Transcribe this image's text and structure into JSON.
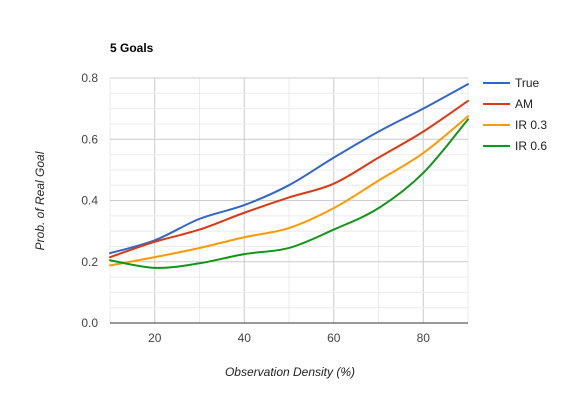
{
  "chart_data": {
    "type": "line",
    "title": "5 Goals",
    "xlabel": "Observation Density (%)",
    "ylabel": "Prob. of Real Goal",
    "xlim": [
      10,
      90
    ],
    "ylim": [
      0,
      0.8
    ],
    "x_ticks": [
      20,
      40,
      60,
      80
    ],
    "y_ticks": [
      0.0,
      0.2,
      0.4,
      0.6,
      0.8
    ],
    "y_tick_labels": [
      "0.0",
      "0.2",
      "0.4",
      "0.6",
      "0.8"
    ],
    "grid": true,
    "legend_position": "right",
    "x": [
      10,
      20,
      30,
      40,
      50,
      60,
      70,
      80,
      90
    ],
    "series": [
      {
        "name": "True",
        "color": "#3366cc",
        "values": [
          0.228,
          0.27,
          0.34,
          0.385,
          0.45,
          0.54,
          0.625,
          0.7,
          0.78
        ]
      },
      {
        "name": "AM",
        "color": "#dc3912",
        "values": [
          0.215,
          0.265,
          0.305,
          0.36,
          0.41,
          0.455,
          0.54,
          0.625,
          0.725
        ]
      },
      {
        "name": "IR 0.3",
        "color": "#ff9900",
        "values": [
          0.188,
          0.215,
          0.245,
          0.28,
          0.31,
          0.375,
          0.465,
          0.555,
          0.675
        ]
      },
      {
        "name": "IR 0.6",
        "color": "#109618",
        "values": [
          0.205,
          0.18,
          0.195,
          0.225,
          0.245,
          0.305,
          0.375,
          0.49,
          0.665
        ]
      }
    ]
  }
}
